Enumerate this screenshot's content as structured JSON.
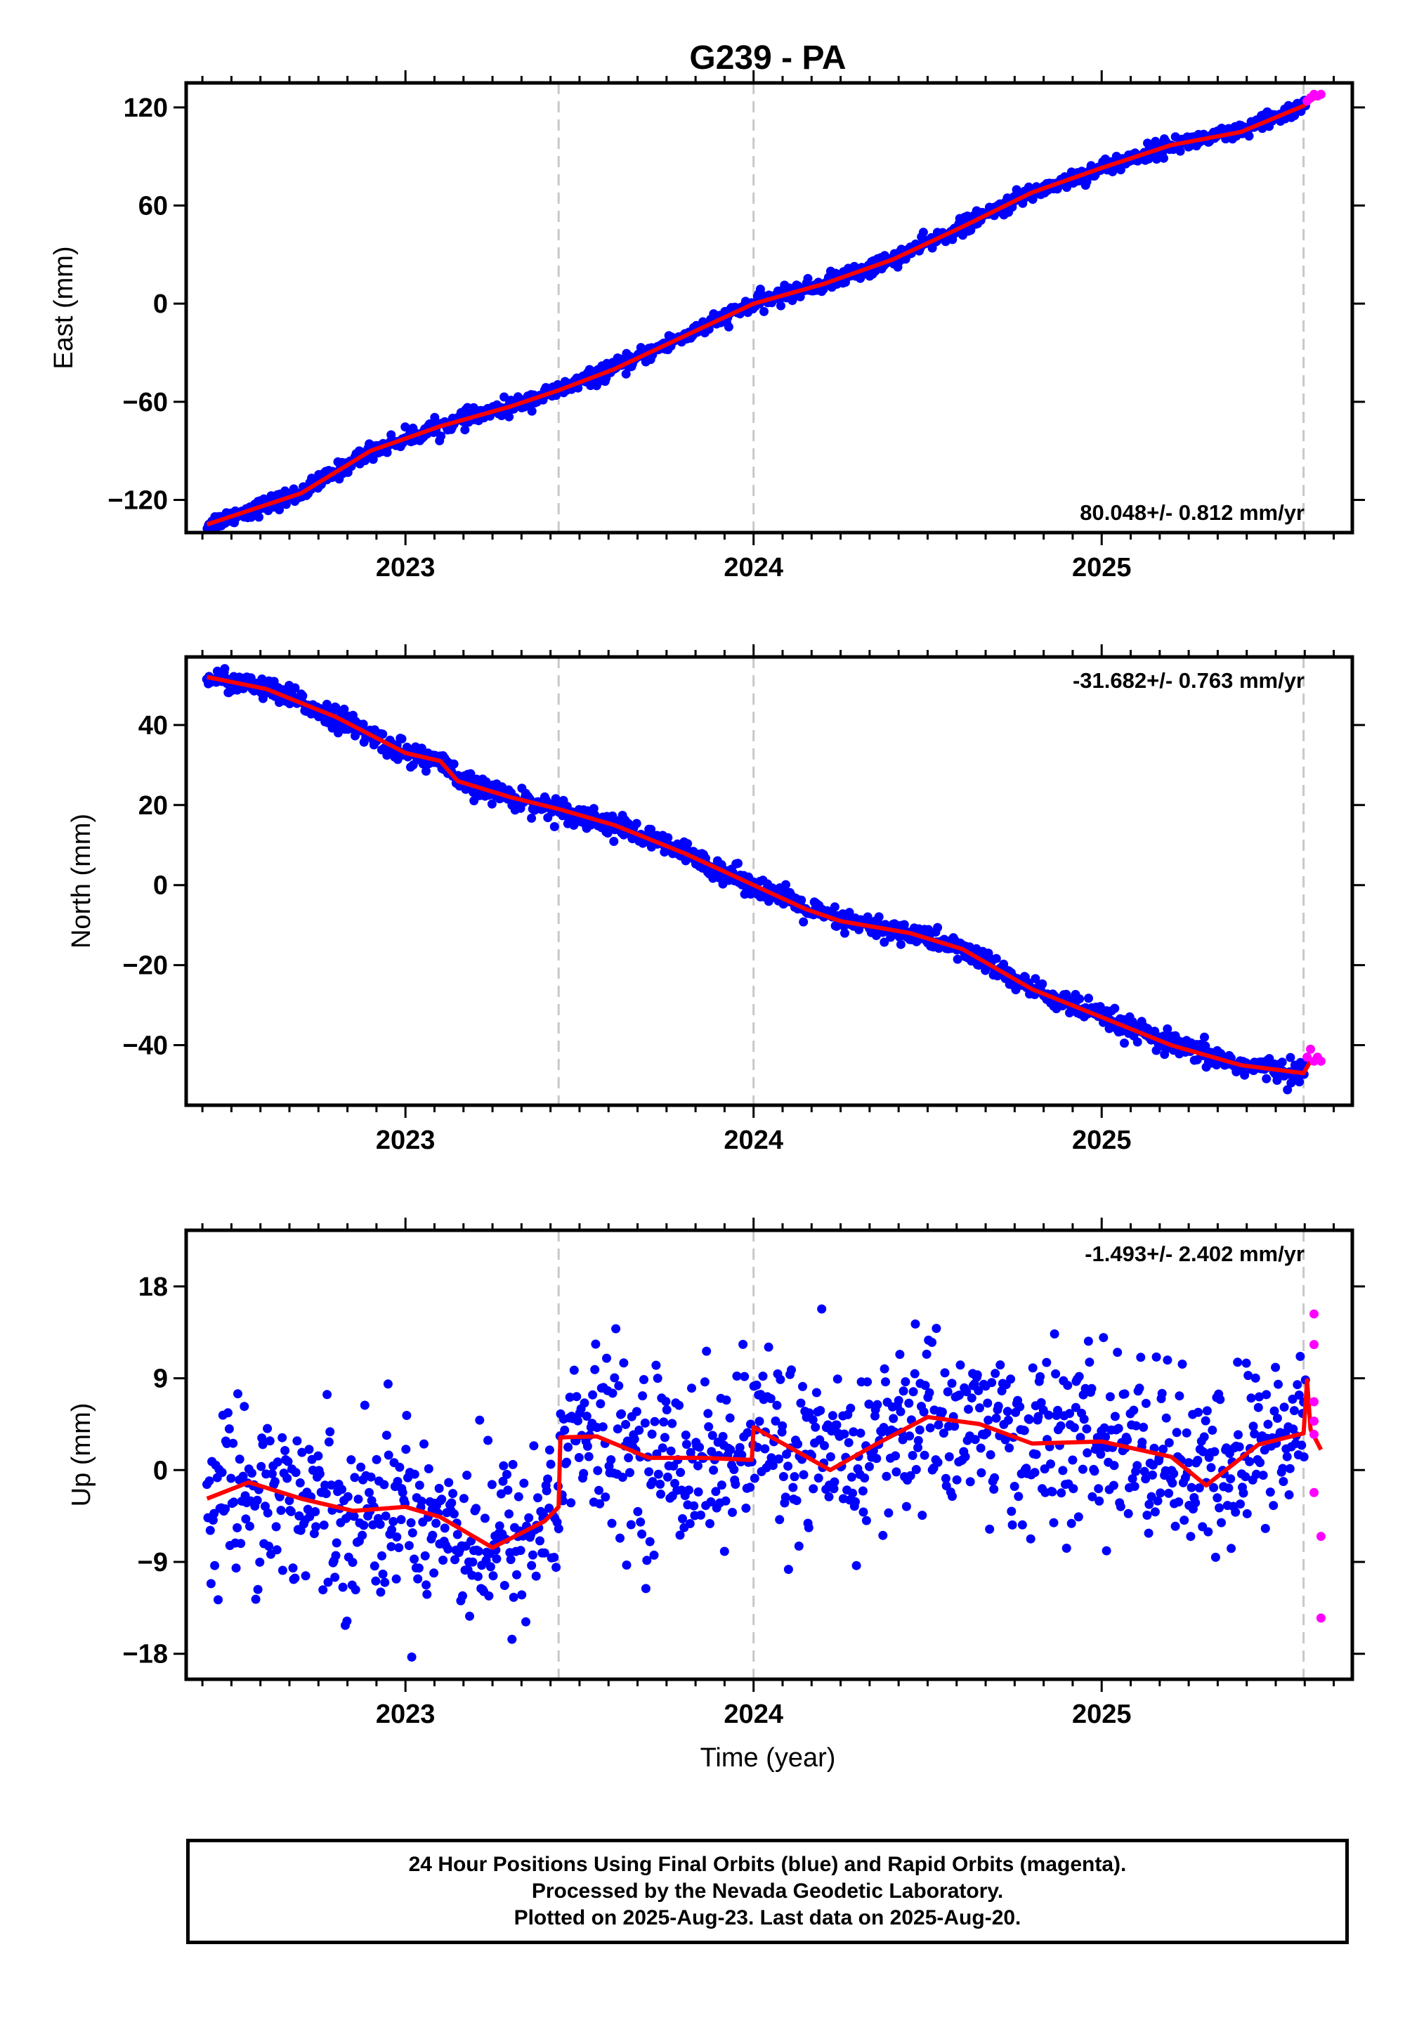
{
  "title": "G239 - PA",
  "xlabel": "Time (year)",
  "footer": {
    "line1": "24 Hour Positions Using Final Orbits (blue) and Rapid Orbits (magenta).",
    "line2": "Processed by the Nevada Geodetic Laboratory.",
    "line3": "Plotted on 2025-Aug-23. Last data on 2025-Aug-20."
  },
  "colors": {
    "final": "#0000ff",
    "rapid": "#ff00ff",
    "model": "#ff0000",
    "breaks": "#c8c8c8"
  },
  "chart_data": [
    {
      "type": "scatter",
      "component": "east",
      "ylabel": "East (mm)",
      "rate": "80.048+/- 0.812 mm/yr",
      "rate_position": "bottom-right",
      "xlim": [
        2022.37,
        2025.72
      ],
      "ylim": [
        -140,
        135
      ],
      "yticks": [
        -120,
        -60,
        0,
        60,
        120
      ],
      "xticks": [
        2023,
        2024,
        2025
      ],
      "breaks": [
        2023.44,
        2024.0,
        2025.58
      ],
      "model": [
        [
          2022.43,
          -135
        ],
        [
          2022.7,
          -116
        ],
        [
          2022.9,
          -90
        ],
        [
          2023.1,
          -75
        ],
        [
          2023.3,
          -63
        ],
        [
          2023.44,
          -53
        ],
        [
          2023.6,
          -40
        ],
        [
          2023.8,
          -20
        ],
        [
          2024.0,
          0
        ],
        [
          2024.2,
          12
        ],
        [
          2024.4,
          27
        ],
        [
          2024.6,
          47
        ],
        [
          2024.8,
          68
        ],
        [
          2025.0,
          83
        ],
        [
          2025.2,
          97
        ],
        [
          2025.4,
          105
        ],
        [
          2025.58,
          121
        ],
        [
          2025.62,
          127
        ]
      ],
      "final_sigma": 2.5,
      "rapid_points": [
        [
          2025.59,
          124
        ],
        [
          2025.6,
          126
        ],
        [
          2025.61,
          128
        ],
        [
          2025.62,
          127
        ],
        [
          2025.63,
          128
        ]
      ]
    },
    {
      "type": "scatter",
      "component": "north",
      "ylabel": "North (mm)",
      "rate": "-31.682+/- 0.763 mm/yr",
      "rate_position": "top-right",
      "xlim": [
        2022.37,
        2025.72
      ],
      "ylim": [
        -55,
        57
      ],
      "yticks": [
        -40,
        -20,
        0,
        20,
        40
      ],
      "xticks": [
        2023,
        2024,
        2025
      ],
      "breaks": [
        2023.44,
        2024.0,
        2025.58
      ],
      "model": [
        [
          2022.43,
          52
        ],
        [
          2022.6,
          49
        ],
        [
          2022.8,
          42
        ],
        [
          2023.0,
          33
        ],
        [
          2023.1,
          31
        ],
        [
          2023.15,
          26
        ],
        [
          2023.3,
          22
        ],
        [
          2023.44,
          19
        ],
        [
          2023.6,
          15
        ],
        [
          2023.8,
          8
        ],
        [
          2024.0,
          0
        ],
        [
          2024.15,
          -6
        ],
        [
          2024.25,
          -9
        ],
        [
          2024.45,
          -12
        ],
        [
          2024.6,
          -16
        ],
        [
          2024.8,
          -26
        ],
        [
          2025.0,
          -33
        ],
        [
          2025.2,
          -40
        ],
        [
          2025.4,
          -45
        ],
        [
          2025.58,
          -47
        ],
        [
          2025.6,
          -44
        ],
        [
          2025.62,
          -44
        ]
      ],
      "final_sigma": 1.4,
      "rapid_points": [
        [
          2025.59,
          -43
        ],
        [
          2025.6,
          -41
        ],
        [
          2025.61,
          -44
        ],
        [
          2025.62,
          -43
        ],
        [
          2025.63,
          -44
        ]
      ]
    },
    {
      "type": "scatter",
      "component": "up",
      "ylabel": "Up (mm)",
      "rate": "-1.493+/- 2.402 mm/yr",
      "rate_position": "top-right",
      "xlim": [
        2022.37,
        2025.72
      ],
      "ylim": [
        -20.5,
        23.5
      ],
      "yticks": [
        -18,
        -9,
        0,
        9,
        18
      ],
      "xticks": [
        2023,
        2024,
        2025
      ],
      "breaks": [
        2023.44,
        2024.0,
        2025.58
      ],
      "model": [
        [
          2022.43,
          -2.8
        ],
        [
          2022.55,
          -1.2
        ],
        [
          2022.7,
          -2.8
        ],
        [
          2022.85,
          -4
        ],
        [
          2023.0,
          -3.6
        ],
        [
          2023.1,
          -4.6
        ],
        [
          2023.25,
          -7.6
        ],
        [
          2023.4,
          -5
        ],
        [
          2023.44,
          -3.6
        ],
        [
          2023.445,
          3.2
        ],
        [
          2023.55,
          3.3
        ],
        [
          2023.7,
          1.2
        ],
        [
          2023.85,
          1.2
        ],
        [
          2023.995,
          1.0
        ],
        [
          2024.0,
          4.2
        ],
        [
          2024.1,
          2.3
        ],
        [
          2024.22,
          0.0
        ],
        [
          2024.35,
          2.5
        ],
        [
          2024.5,
          5.2
        ],
        [
          2024.65,
          4.5
        ],
        [
          2024.8,
          2.6
        ],
        [
          2025.0,
          2.8
        ],
        [
          2025.2,
          1.3
        ],
        [
          2025.3,
          -1.5
        ],
        [
          2025.45,
          2.5
        ],
        [
          2025.58,
          3.6
        ],
        [
          2025.59,
          8.8
        ],
        [
          2025.6,
          4.0
        ],
        [
          2025.63,
          2.0
        ]
      ],
      "final_sigma": 4.3,
      "rapid_points": [
        [
          2025.61,
          15.3
        ],
        [
          2025.61,
          12.3
        ],
        [
          2025.61,
          6.7
        ],
        [
          2025.61,
          4.8
        ],
        [
          2025.61,
          3.5
        ],
        [
          2025.61,
          -2.2
        ],
        [
          2025.63,
          -6.5
        ],
        [
          2025.63,
          -14.5
        ]
      ]
    }
  ]
}
